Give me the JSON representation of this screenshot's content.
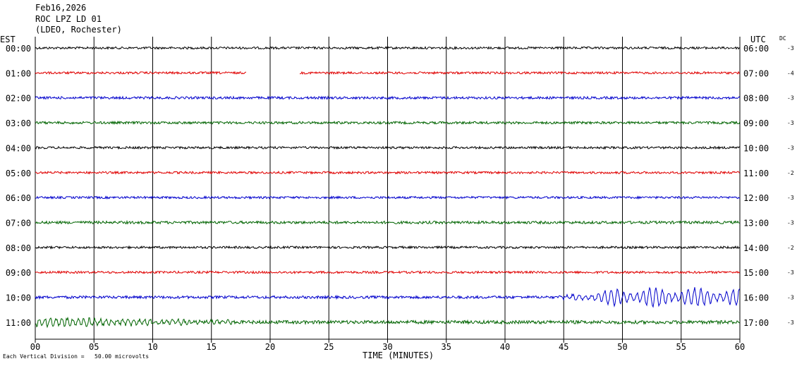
{
  "header": {
    "date": "Feb16,2026",
    "station": "ROC LPZ LD 01",
    "network": "(LDEO, Rochester)"
  },
  "left_axis_title": "EST",
  "right_axis_title": "UTC",
  "dc_title": "DC",
  "footer": {
    "scale_note": "Each Vertical Division =   50.00 microvolts",
    "xlabel": "TIME (MINUTES)"
  },
  "colors": {
    "black": "#000000",
    "red": "#e00000",
    "blue": "#0000cc",
    "green": "#006400",
    "grid": "#000000"
  },
  "chart_data": {
    "type": "line",
    "title": "ROC LPZ LD 01",
    "xlabel": "TIME (MINUTES)",
    "xlim": [
      0,
      60
    ],
    "xticks": [
      "00",
      "05",
      "10",
      "15",
      "20",
      "25",
      "30",
      "35",
      "40",
      "45",
      "50",
      "55",
      "60"
    ],
    "grid": "vertical lines every 5 minutes",
    "rows": [
      {
        "est": "00:00",
        "utc": "06:00",
        "dc": "-3",
        "color": "black",
        "noise": 1.0
      },
      {
        "est": "01:00",
        "utc": "07:00",
        "dc": "-4",
        "color": "red",
        "noise": 1.0,
        "gap_minutes": [
          18,
          22.5
        ]
      },
      {
        "est": "02:00",
        "utc": "08:00",
        "dc": "-3",
        "color": "blue",
        "noise": 1.1
      },
      {
        "est": "03:00",
        "utc": "09:00",
        "dc": "-3",
        "color": "green",
        "noise": 1.1
      },
      {
        "est": "04:00",
        "utc": "10:00",
        "dc": "-3",
        "color": "black",
        "noise": 1.0
      },
      {
        "est": "05:00",
        "utc": "11:00",
        "dc": "-2",
        "color": "red",
        "noise": 1.0
      },
      {
        "est": "06:00",
        "utc": "12:00",
        "dc": "-3",
        "color": "blue",
        "noise": 1.0
      },
      {
        "est": "07:00",
        "utc": "13:00",
        "dc": "-3",
        "color": "green",
        "noise": 1.2
      },
      {
        "est": "08:00",
        "utc": "14:00",
        "dc": "-2",
        "color": "black",
        "noise": 1.0
      },
      {
        "est": "09:00",
        "utc": "15:00",
        "dc": "-3",
        "color": "red",
        "noise": 1.0
      },
      {
        "est": "10:00",
        "utc": "16:00",
        "dc": "-3",
        "color": "blue",
        "noise": 1.2,
        "event": "surface-wave arrival growing from about minute 44 to 60"
      },
      {
        "est": "11:00",
        "utc": "17:00",
        "dc": "-3",
        "color": "green",
        "noise": 1.5,
        "event": "coda decaying from minute 0 to about minute 17"
      }
    ]
  }
}
